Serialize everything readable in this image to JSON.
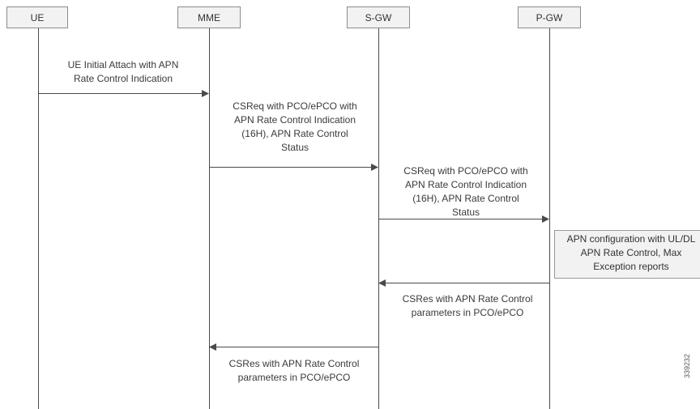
{
  "entities": {
    "ue": "UE",
    "mme": "MME",
    "sgw": "S-GW",
    "pgw": "P-GW"
  },
  "messages": {
    "m1": [
      "UE Initial Attach with APN",
      "Rate Control Indication"
    ],
    "m2": [
      "CSReq with PCO/ePCO with",
      "APN Rate Control Indication",
      "(16H), APN Rate Control",
      "Status"
    ],
    "m3": [
      "CSReq with PCO/ePCO with",
      "APN Rate Control Indication",
      "(16H), APN Rate Control",
      "Status"
    ],
    "m4": [
      "CSRes with APN Rate Control",
      "parameters in PCO/ePCO"
    ],
    "m5": [
      "CSRes with APN Rate Control",
      "parameters in PCO/ePCO"
    ]
  },
  "note": [
    "APN configuration with UL/DL",
    "APN Rate Control, Max",
    "Exception reports"
  ],
  "figure_id": "339232",
  "colors": {
    "line": "#4a4a4a",
    "box_fill": "#f2f2f2",
    "box_border": "#8c8c8c"
  }
}
